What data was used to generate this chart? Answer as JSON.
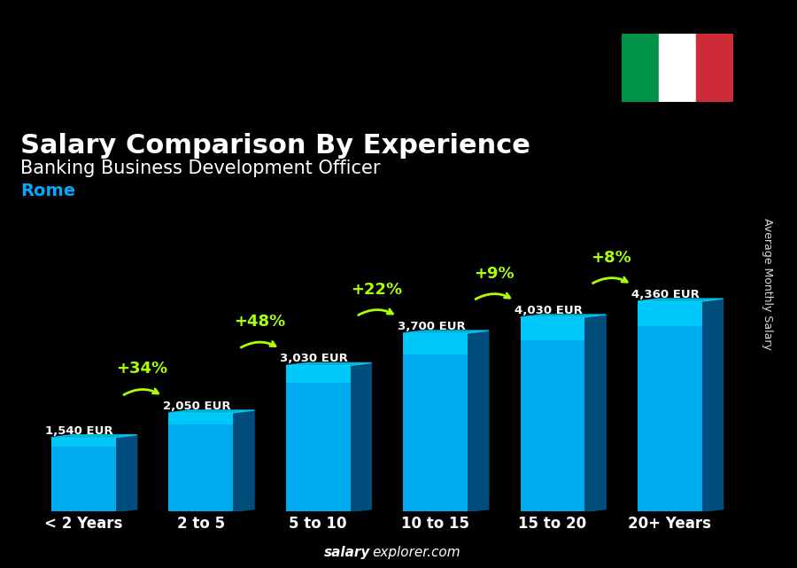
{
  "title": "Salary Comparison By Experience",
  "subtitle": "Banking Business Development Officer",
  "city": "Rome",
  "ylabel": "Average Monthly Salary",
  "footer": "salaryexplorer.com",
  "categories": [
    "< 2 Years",
    "2 to 5",
    "5 to 10",
    "10 to 15",
    "15 to 20",
    "20+ Years"
  ],
  "values": [
    1540,
    2050,
    3030,
    3700,
    4030,
    4360
  ],
  "labels": [
    "1,540 EUR",
    "2,050 EUR",
    "3,030 EUR",
    "3,700 EUR",
    "4,030 EUR",
    "4,360 EUR"
  ],
  "pct_changes": [
    null,
    "+34%",
    "+48%",
    "+22%",
    "+9%",
    "+8%"
  ],
  "bar_color_top": "#00d4ff",
  "bar_color_mid": "#00aaee",
  "bar_color_side": "#005588",
  "bar_color_bottom": "#003366",
  "bg_color": "#1a1a2e",
  "title_color": "#ffffff",
  "subtitle_color": "#ffffff",
  "city_color": "#00aaff",
  "label_color": "#ffffff",
  "pct_color": "#aaff00",
  "arrow_color": "#aaff00",
  "ylabel_color": "#ffffff",
  "footer_bold": "salary",
  "footer_normal": "explorer.com",
  "footer_color": "#ffffff",
  "bar_width": 0.55
}
